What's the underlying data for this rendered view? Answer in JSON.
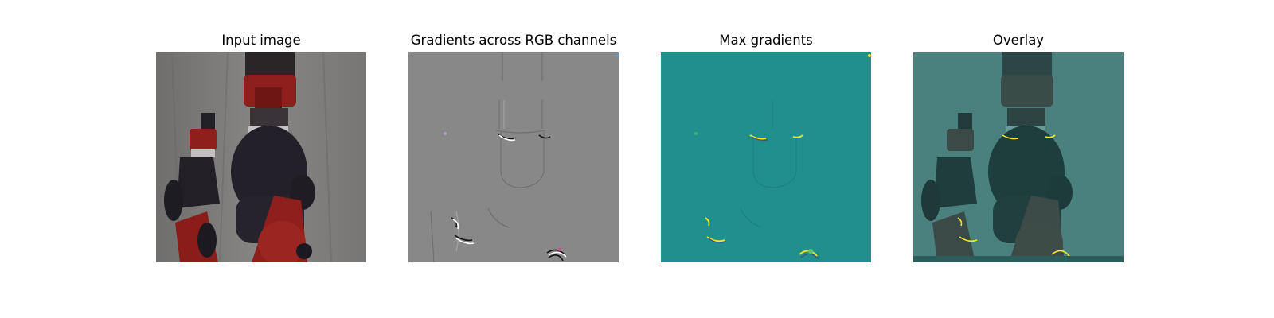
{
  "panels": [
    {
      "id": "input",
      "title": "Input image"
    },
    {
      "id": "gradients",
      "title": "Gradients across RGB channels"
    },
    {
      "id": "max",
      "title": "Max gradients"
    },
    {
      "id": "overlay",
      "title": "Overlay"
    }
  ],
  "colors": {
    "page_background": "#ffffff",
    "input_background": "#7c7b7a",
    "robot_red": "#8f1f1c",
    "robot_dark": "#23202a",
    "gradient_gray": "#888888",
    "viridis_teal": "#21908c",
    "viridis_yellow": "#fde725",
    "overlay_teal": "#3f7f7c"
  }
}
